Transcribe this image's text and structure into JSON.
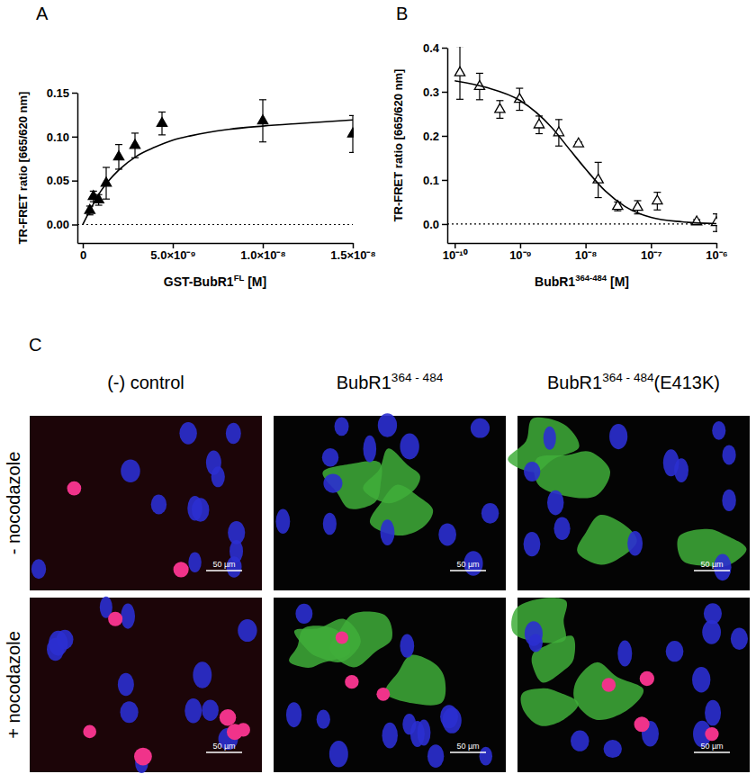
{
  "chart_data": [
    {
      "type": "scatter",
      "panel_label": "A",
      "y_label": "TR-FRET ratio [665/620 nm]",
      "x_label": {
        "text": "GST-BubR1",
        "superscript": "FL",
        "suffix": " [M]"
      },
      "xlim": [
        -3e-10,
        1.5e-08
      ],
      "xticks": [
        0,
        {
          "value": 5e-09,
          "label": "5.0×10⁻⁹"
        },
        {
          "value": 1e-08,
          "label": "1.0×10⁻⁸"
        },
        {
          "value": 1.5e-08,
          "label": "1.5×10⁻⁸"
        }
      ],
      "ylim": [
        -0.021,
        0.15
      ],
      "yticks": [
        {
          "value": 0,
          "label": "0.00"
        },
        {
          "value": 0.05,
          "label": "0.05"
        },
        {
          "value": 0.1,
          "label": "0.10"
        },
        {
          "value": 0.15,
          "label": "0.15"
        }
      ],
      "reference_lines": [
        {
          "value": 0,
          "line_style": "dotted"
        }
      ],
      "series": [
        {
          "type": "scatter",
          "marker": "triangle",
          "color": "#000000",
          "x": [
            3.9e-10,
            5.9e-10,
            8.8e-10,
            1.3e-09,
            2e-09,
            2.9e-09,
            4.4e-09,
            1e-08,
            1.5e-08
          ],
          "values": [
            0.016,
            0.032,
            0.028,
            0.047,
            0.077,
            0.09,
            0.115,
            0.118,
            0.103
          ],
          "errors": [
            0.005,
            0.006,
            0.006,
            0.018,
            0.014,
            0.014,
            0.013,
            0.024,
            0.021
          ]
        },
        {
          "type": "line",
          "line_style": "solid",
          "color": "#000000",
          "x": [
            0,
            1e-09,
            2e-09,
            3e-09,
            4e-09,
            5e-09,
            6e-09,
            8e-09,
            1e-08,
            1.2e-08,
            1.5e-08
          ],
          "values": [
            0,
            0.038,
            0.062,
            0.078,
            0.088,
            0.096,
            0.101,
            0.108,
            0.112,
            0.115,
            0.119
          ]
        }
      ]
    },
    {
      "type": "scatter",
      "panel_label": "B",
      "log": "x",
      "y_label": "TR-FRET ratio [665/620 nm]",
      "x_label": {
        "text": "BubR1",
        "superscript": "364-484",
        "suffix": " [M]"
      },
      "xlim": [
        7.7e-11,
        1e-06
      ],
      "xticks": [
        {
          "value": 1e-10,
          "label": "10⁻¹⁰"
        },
        {
          "value": 1e-09,
          "label": "10⁻⁹"
        },
        {
          "value": 1e-08,
          "label": "10⁻⁸"
        },
        {
          "value": 1e-07,
          "label": "10⁻⁷"
        },
        {
          "value": 1e-06,
          "label": "10⁻⁶"
        }
      ],
      "ylim": [
        -0.043,
        0.4
      ],
      "yticks": [
        {
          "value": 0,
          "label": "0.0"
        },
        {
          "value": 0.1,
          "label": "0.1"
        },
        {
          "value": 0.2,
          "label": "0.2"
        },
        {
          "value": 0.3,
          "label": "0.3"
        },
        {
          "value": 0.4,
          "label": "0.4"
        }
      ],
      "reference_lines": [
        {
          "value": 0,
          "line_style": "dotted"
        }
      ],
      "series": [
        {
          "type": "scatter",
          "marker": "triangle-open",
          "color": "#000000",
          "x": [
            1.2e-10,
            2.4e-10,
            4.9e-10,
            9.8e-10,
            1.95e-09,
            3.9e-09,
            7.8e-09,
            1.56e-08,
            3.1e-08,
            6.25e-08,
            1.25e-07,
            5e-07,
            1e-06
          ],
          "values": [
            0.343,
            0.312,
            0.26,
            0.283,
            0.225,
            0.207,
            0.182,
            0.1,
            0.04,
            0.038,
            0.052,
            0.005,
            0.003
          ],
          "errors": [
            0.06,
            0.03,
            0.02,
            0.025,
            0.02,
            0.03,
            0.004,
            0.04,
            0.01,
            0.015,
            0.02,
            0.005,
            0.02
          ]
        },
        {
          "type": "line",
          "line_style": "solid",
          "color": "#000000",
          "x": [
            1e-10,
            3e-10,
            1e-09,
            3e-09,
            6e-09,
            1e-08,
            2e-08,
            4e-08,
            1e-07,
            3e-07,
            1e-06
          ],
          "values": [
            0.325,
            0.31,
            0.28,
            0.22,
            0.165,
            0.125,
            0.075,
            0.04,
            0.015,
            0.005,
            0.001
          ]
        }
      ]
    }
  ],
  "image_panel": {
    "panel_label": "C",
    "columns": [
      "(-) control",
      {
        "text": "BubR1",
        "superscript": "364 - 484"
      },
      {
        "text": "BubR1",
        "superscript": "364 - 484",
        "suffix": "(E413K)"
      }
    ],
    "rows": [
      "- nocodazole",
      "+ nocodazole"
    ],
    "scale_bar": "50 µm"
  }
}
